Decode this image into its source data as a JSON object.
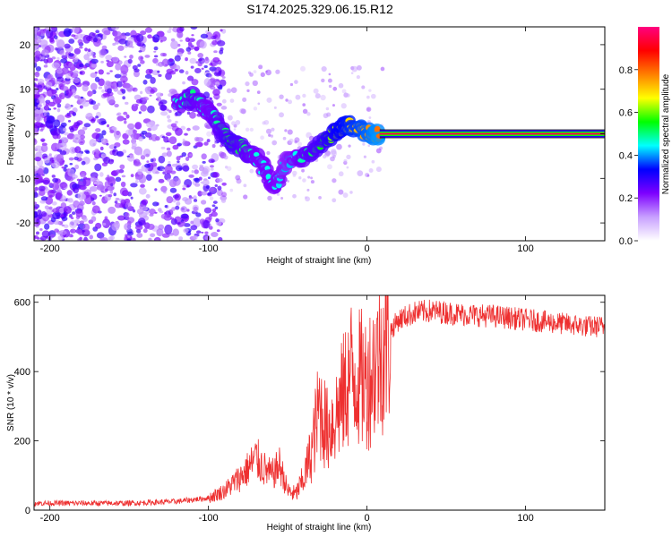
{
  "title": "S174.2025.329.06.15.R12",
  "chart_data": [
    {
      "type": "heatmap",
      "title": "S174.2025.329.06.15.R12",
      "xlabel": "Height of straight line (km)",
      "ylabel": "Frequency (Hz)",
      "xlim": [
        -210,
        150
      ],
      "ylim": [
        -24,
        24
      ],
      "xticks": [
        -200,
        -100,
        0,
        100
      ],
      "yticks": [
        -20,
        -10,
        0,
        10,
        20
      ],
      "colorbar": {
        "label": "Normalized spectral amplitude",
        "range": [
          0,
          1
        ],
        "ticks": [
          0.0,
          0.2,
          0.4,
          0.6,
          0.8
        ],
        "colors": [
          "#ffffff",
          "#c8a0ff",
          "#7d00ff",
          "#0000ff",
          "#00ffff",
          "#00ff00",
          "#ffff00",
          "#ff7f00",
          "#ff0000",
          "#ff0080"
        ]
      },
      "ridge": [
        {
          "x": -120,
          "y": 7,
          "a": 0.45
        },
        {
          "x": -110,
          "y": 8,
          "a": 0.5
        },
        {
          "x": -100,
          "y": 5,
          "a": 0.45
        },
        {
          "x": -92,
          "y": 1,
          "a": 0.5
        },
        {
          "x": -85,
          "y": -2,
          "a": 0.55
        },
        {
          "x": -75,
          "y": -4,
          "a": 0.5
        },
        {
          "x": -68,
          "y": -6,
          "a": 0.45
        },
        {
          "x": -58,
          "y": -12,
          "a": 0.45
        },
        {
          "x": -50,
          "y": -6,
          "a": 0.4
        },
        {
          "x": -38,
          "y": -5,
          "a": 0.5
        },
        {
          "x": -28,
          "y": -2,
          "a": 0.55
        },
        {
          "x": -18,
          "y": 1,
          "a": 0.65
        },
        {
          "x": -10,
          "y": 2,
          "a": 0.7
        },
        {
          "x": 0,
          "y": 0,
          "a": 0.75
        },
        {
          "x": 8,
          "y": 0,
          "a": 0.8
        }
      ],
      "tone": {
        "x_start": 8,
        "x_end": 150,
        "y": 0,
        "a": 0.95
      }
    },
    {
      "type": "line",
      "xlabel": "Height of straight line (km)",
      "ylabel": "SNR (10 * v/v)",
      "xlim": [
        -210,
        150
      ],
      "ylim": [
        0,
        620
      ],
      "xticks": [
        -200,
        -100,
        0,
        100
      ],
      "yticks": [
        0,
        200,
        400,
        600
      ],
      "color": "#ee3030",
      "series": [
        {
          "name": "SNR",
          "x": [
            -210,
            -150,
            -120,
            -100,
            -90,
            -80,
            -75,
            -70,
            -65,
            -60,
            -55,
            -50,
            -45,
            -40,
            -35,
            -30,
            -25,
            -20,
            -15,
            -10,
            -5,
            0,
            5,
            10,
            15,
            20,
            30,
            40,
            50,
            60,
            80,
            100,
            120,
            140,
            150
          ],
          "values": [
            20,
            20,
            25,
            35,
            55,
            95,
            120,
            150,
            120,
            100,
            130,
            55,
            45,
            90,
            170,
            300,
            230,
            270,
            330,
            400,
            380,
            370,
            420,
            470,
            520,
            550,
            570,
            575,
            570,
            565,
            560,
            550,
            540,
            530,
            530
          ]
        }
      ]
    }
  ]
}
